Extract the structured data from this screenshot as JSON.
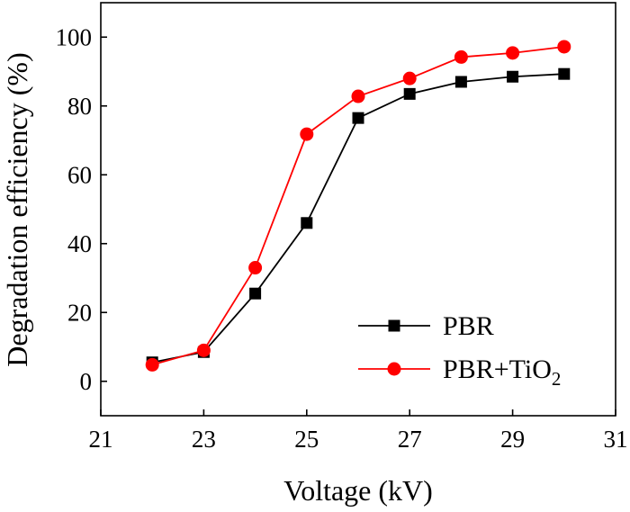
{
  "chart_data": {
    "type": "line",
    "title": "",
    "xlabel": "Voltage (kV)",
    "ylabel": "Degradation efficiency (%)",
    "xlim": [
      21,
      31
    ],
    "ylim": [
      -10,
      110
    ],
    "xticks": [
      21,
      23,
      25,
      27,
      29,
      31
    ],
    "yticks": [
      0,
      20,
      40,
      60,
      80,
      100
    ],
    "x": [
      22,
      23,
      24,
      25,
      26,
      27,
      28,
      29,
      30
    ],
    "grid": false,
    "legend_position": "bottom-right",
    "series": [
      {
        "name": "PBR",
        "name_main": "PBR",
        "name_sub": "",
        "color": "#000000",
        "marker": "square",
        "values": [
          5.5,
          8.5,
          25.5,
          46,
          76.5,
          83.5,
          87,
          88.5,
          89.3
        ]
      },
      {
        "name": "PBR+TiO2",
        "name_main": "PBR+TiO",
        "name_sub": "2",
        "color": "#ff0000",
        "marker": "circle",
        "values": [
          4.8,
          9,
          33,
          71.8,
          82.8,
          88,
          94.2,
          95.4,
          97.2
        ]
      }
    ]
  }
}
